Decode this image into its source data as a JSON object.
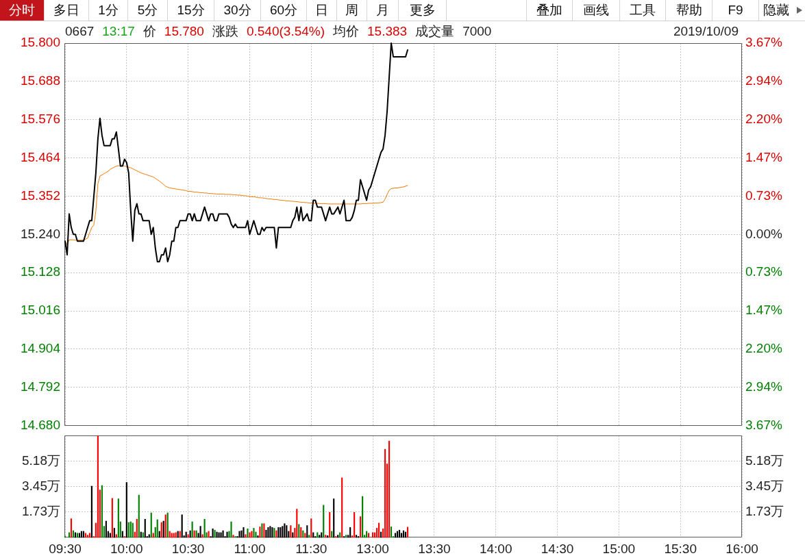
{
  "chart_data": [
    {
      "type": "line",
      "annotations": [
        "分时",
        "多日",
        "1分",
        "5分",
        "15分",
        "30分",
        "60分",
        "日",
        "周",
        "月",
        "更多",
        "叠加",
        "画线",
        "工具",
        "帮助",
        "F9",
        "隐藏",
        "0667",
        "13:17",
        "价",
        "15.780",
        "涨跌",
        "0.540(3.54%)",
        "均价",
        "15.383",
        "成交量",
        "7000",
        "2019/10/09"
      ],
      "categories": [
        null,
        null,
        null,
        null,
        null,
        null,
        null,
        null,
        null,
        null,
        null,
        null,
        null,
        null,
        null,
        null,
        null,
        null,
        null,
        null,
        null,
        null,
        null,
        null,
        null,
        null,
        null,
        null,
        null,
        null,
        null,
        null,
        null,
        null,
        null,
        null,
        null,
        null,
        null,
        null,
        null,
        null,
        null,
        null,
        null,
        null,
        null,
        null,
        null,
        null,
        null,
        null,
        null,
        null,
        null,
        null,
        null,
        null,
        null,
        null,
        null,
        null,
        null,
        null,
        null,
        null,
        null,
        null,
        null,
        null,
        null,
        null,
        null,
        null,
        null,
        null,
        null,
        null,
        null,
        null,
        null,
        null,
        null,
        null,
        null,
        null,
        null,
        null,
        null,
        null,
        null,
        null,
        null,
        null,
        null,
        null,
        null,
        null,
        null,
        null,
        null,
        null,
        null,
        null,
        null,
        null,
        null,
        null,
        null,
        null,
        null,
        null,
        null,
        null,
        null,
        null,
        null,
        null,
        null,
        null,
        null,
        null,
        null,
        null,
        null,
        null,
        null,
        null,
        null,
        null,
        null,
        null,
        null,
        null,
        null,
        null,
        null,
        null,
        null,
        null,
        null,
        null,
        null,
        null,
        null,
        null,
        null,
        null,
        null,
        null,
        null,
        null,
        null,
        null,
        null,
        null,
        null,
        null,
        null,
        null,
        null,
        null,
        null,
        null,
        null,
        null,
        null,
        null,
        null,
        null,
        null,
        null,
        null,
        null,
        null,
        null,
        null,
        null,
        null,
        null,
        null,
        null,
        null,
        null,
        null,
        null,
        null,
        null,
        null,
        null,
        null,
        null,
        null,
        null,
        null,
        null,
        null,
        null,
        null,
        null,
        null,
        null,
        null,
        null,
        null,
        null,
        null,
        null,
        null,
        null,
        null,
        null,
        null,
        null,
        null,
        null,
        null,
        null,
        null,
        null,
        null,
        null,
        null,
        null,
        null,
        null,
        null,
        null,
        null,
        null,
        null,
        null,
        null,
        null,
        null,
        null,
        null,
        null,
        null,
        null,
        null,
        null,
        null,
        null,
        null,
        null,
        null,
        null,
        null,
        null,
        null,
        null,
        null,
        null,
        null,
        null,
        null,
        null,
        null,
        null,
        null,
        null,
        null,
        null,
        null,
        null,
        null,
        null,
        null,
        null,
        null,
        null,
        null,
        null,
        null,
        null,
        null,
        null,
        null,
        null,
        null,
        null,
        null,
        null,
        null,
        null,
        null,
        null,
        null,
        null,
        null,
        null,
        null,
        null,
        null,
        null,
        null,
        null,
        null,
        null,
        null,
        null,
        null,
        null,
        null,
        null,
        null,
        null,
        null,
        null,
        null,
        null,
        null,
        null,
        null,
        null,
        null,
        null,
        null,
        null,
        null,
        null,
        null,
        null,
        null,
        null,
        null,
        null,
        null,
        null,
        null
      ],
      "ylim": [
        14.68,
        15.8
      ],
      "yticks": [
        {
          "value": 15.8,
          "label": "15.800"
        },
        15.688,
        15.576,
        15.464,
        15.352,
        {
          "value": 15.24,
          "label": "15.240"
        },
        15.128,
        15.016,
        14.904,
        14.792,
        {
          "value": 14.68,
          "label": "14.680"
        }
      ],
      "y2lim": [
        -3.67,
        3.67
      ],
      "y2ticks": [
        {
          "value": 3.67,
          "label": "3.67%"
        },
        {
          "value": 2.94,
          "label": "2.94%"
        },
        {
          "value": 2.2,
          "label": "2.20%"
        },
        {
          "value": 1.47,
          "label": "1.47%"
        },
        {
          "value": 0.73,
          "label": "0.73%"
        },
        {
          "value": 0,
          "label": "0.00%"
        },
        {
          "value": -0.73,
          "label": "0.73%"
        },
        {
          "value": -1.47,
          "label": "1.47%"
        },
        {
          "value": -2.2,
          "label": "2.20%"
        },
        {
          "value": -2.94,
          "label": "2.94%"
        },
        {
          "value": -3.67,
          "label": "3.67%"
        }
      ],
      "series": [
        {
          "color": "#000000",
          "values": [
            15.22,
            15.18,
            15.3,
            15.26,
            15.24,
            15.24,
            15.22,
            15.22,
            15.22,
            15.22,
            15.24,
            15.26,
            15.28,
            15.28,
            15.35,
            15.42,
            15.52,
            15.58,
            15.53,
            15.5,
            15.5,
            15.5,
            15.5,
            15.52,
            15.52,
            15.54,
            15.49,
            15.44,
            15.44,
            15.46,
            15.45,
            15.42,
            15.31,
            15.22,
            15.31,
            15.33,
            15.3,
            15.3,
            15.28,
            15.28,
            15.28,
            15.28,
            15.24,
            15.26,
            15.2,
            15.16,
            15.16,
            15.18,
            15.18,
            15.2,
            15.16,
            15.18,
            15.22,
            15.22,
            15.26,
            15.26,
            15.28,
            15.28,
            15.28,
            15.28,
            15.3,
            15.3,
            15.28,
            15.3,
            15.28,
            15.28,
            15.28,
            15.3,
            15.32,
            15.3,
            15.28,
            15.3,
            15.3,
            15.28,
            15.28,
            15.3,
            15.3,
            15.3,
            15.3,
            15.3,
            15.29,
            15.27,
            15.26,
            15.27,
            15.26,
            15.26,
            15.26,
            15.26,
            15.26,
            15.28,
            15.24,
            15.26,
            15.28,
            15.26,
            15.24,
            15.24,
            15.26,
            15.25,
            15.26,
            15.26,
            15.26,
            15.26,
            15.26,
            15.2,
            15.26,
            15.26,
            15.26,
            15.26,
            15.26,
            15.26,
            15.26,
            15.28,
            15.29,
            15.32,
            15.28,
            15.32,
            15.28,
            15.29,
            15.3,
            15.28,
            15.28,
            15.34,
            15.34,
            15.32,
            15.32,
            15.32,
            15.3,
            15.28,
            15.3,
            15.32,
            15.3,
            15.3,
            15.31,
            15.32,
            15.3,
            15.32,
            15.34,
            15.28,
            15.28,
            15.28,
            15.29,
            15.31,
            15.34,
            15.34,
            15.4,
            15.38,
            15.36,
            15.34,
            15.37,
            15.38,
            15.4,
            15.42,
            15.44,
            15.46,
            15.48,
            15.49,
            15.53,
            15.6,
            15.7,
            15.8,
            15.76,
            15.76,
            15.76,
            15.76,
            15.76,
            15.76,
            15.76,
            15.78,
            null,
            null,
            null,
            null,
            null,
            null,
            null,
            null,
            null,
            null,
            null,
            null,
            null,
            null,
            null,
            null,
            null,
            null,
            null,
            null,
            null,
            null,
            null,
            null,
            null,
            null,
            null,
            null,
            null,
            null,
            null,
            null,
            null,
            null,
            null,
            null,
            null,
            null,
            null,
            null,
            null,
            null,
            null,
            null,
            null,
            null,
            null,
            null,
            null,
            null,
            null,
            null,
            null,
            null,
            null,
            null,
            null,
            null,
            null,
            null,
            null,
            null,
            null,
            null,
            null,
            null,
            null,
            null,
            null,
            null,
            null,
            null,
            null,
            null,
            null,
            null,
            null,
            null,
            null,
            null,
            null,
            null,
            null,
            null,
            null,
            null,
            null,
            null,
            null,
            null,
            null,
            null,
            null,
            null,
            null,
            null,
            null,
            null,
            null,
            null,
            null,
            null,
            null,
            null,
            null,
            null,
            null,
            null,
            null,
            null,
            null,
            null,
            null,
            null,
            null,
            null,
            null,
            null,
            null,
            null,
            null,
            null,
            null,
            null,
            null,
            null,
            null,
            null,
            null,
            null,
            null,
            null,
            null,
            null,
            null,
            null,
            null,
            null,
            null,
            null,
            null,
            null,
            null,
            null,
            null,
            null,
            null,
            null,
            null,
            null,
            null,
            null,
            null,
            null,
            null,
            null,
            null,
            null,
            null,
            null,
            null,
            null,
            null
          ]
        },
        {
          "color": "#f07800",
          "values": [
            15.22,
            15.21,
            15.224,
            15.224,
            15.224,
            15.223,
            15.223,
            15.223,
            15.223,
            15.223,
            15.226,
            15.229,
            15.245,
            15.26,
            15.267,
            15.308,
            15.388,
            15.411,
            15.414,
            15.418,
            15.421,
            15.425,
            15.43,
            15.434,
            15.437,
            15.44,
            15.441,
            15.441,
            15.44,
            15.44,
            15.439,
            15.437,
            15.435,
            15.432,
            15.429,
            15.426,
            15.423,
            15.42,
            15.418,
            15.416,
            15.414,
            15.412,
            15.41,
            15.408,
            15.404,
            15.4,
            15.396,
            15.391,
            15.386,
            15.381,
            15.378,
            15.376,
            15.375,
            15.374,
            15.373,
            15.372,
            15.371,
            15.37,
            15.369,
            15.368,
            15.366,
            15.366,
            15.365,
            15.364,
            15.364,
            15.363,
            15.362,
            15.362,
            15.361,
            15.361,
            15.36,
            15.36,
            15.359,
            15.359,
            15.358,
            15.358,
            15.358,
            15.358,
            15.357,
            15.357,
            15.357,
            15.357,
            15.356,
            15.356,
            15.355,
            15.355,
            15.354,
            15.353,
            15.353,
            15.352,
            15.351,
            15.35,
            15.35,
            15.349,
            15.348,
            15.347,
            15.347,
            15.346,
            15.345,
            15.344,
            15.344,
            15.343,
            15.342,
            15.342,
            15.341,
            15.34,
            15.34,
            15.339,
            15.338,
            15.338,
            15.337,
            15.337,
            15.336,
            15.336,
            15.335,
            15.334,
            15.334,
            15.333,
            15.333,
            15.332,
            15.332,
            15.331,
            15.331,
            15.331,
            15.33,
            15.33,
            15.33,
            15.33,
            15.329,
            15.329,
            15.329,
            15.329,
            15.329,
            15.329,
            15.329,
            15.329,
            15.329,
            15.329,
            15.329,
            15.329,
            15.329,
            15.329,
            15.329,
            15.329,
            15.329,
            15.33,
            15.33,
            15.33,
            15.331,
            15.331,
            15.331,
            15.332,
            15.332,
            15.332,
            15.333,
            15.334,
            15.343,
            15.357,
            15.369,
            15.374,
            15.375,
            15.376,
            15.376,
            15.377,
            15.378,
            15.379,
            15.381,
            15.383,
            null,
            null,
            null,
            null,
            null,
            null,
            null,
            null,
            null,
            null,
            null,
            null,
            null,
            null,
            null,
            null,
            null,
            null,
            null,
            null,
            null,
            null,
            null,
            null,
            null,
            null,
            null,
            null,
            null,
            null,
            null,
            null,
            null,
            null,
            null,
            null,
            null,
            null,
            null,
            null,
            null,
            null,
            null,
            null,
            null,
            null,
            null,
            null,
            null,
            null,
            null,
            null,
            null,
            null,
            null,
            null,
            null,
            null,
            null,
            null,
            null,
            null,
            null,
            null,
            null,
            null,
            null,
            null,
            null,
            null,
            null,
            null,
            null,
            null,
            null,
            null,
            null,
            null,
            null,
            null,
            null,
            null,
            null,
            null,
            null,
            null,
            null,
            null,
            null,
            null,
            null,
            null,
            null,
            null,
            null,
            null,
            null,
            null,
            null,
            null,
            null,
            null,
            null,
            null,
            null,
            null,
            null,
            null,
            null,
            null,
            null,
            null,
            null,
            null,
            null,
            null,
            null,
            null,
            null,
            null,
            null,
            null,
            null,
            null,
            null,
            null,
            null,
            null,
            null,
            null,
            null,
            null,
            null,
            null,
            null,
            null,
            null,
            null,
            null,
            null,
            null,
            null,
            null,
            null,
            null,
            null,
            null,
            null,
            null,
            null,
            null,
            null,
            null,
            null,
            null,
            null,
            null,
            null,
            null,
            null,
            null,
            null,
            null
          ]
        }
      ],
      "grid": true,
      "tick_labels": "y"
    },
    {
      "type": "bar",
      "categories": [
        "09:30",
        null,
        null,
        null,
        null,
        null,
        null,
        null,
        null,
        null,
        null,
        null,
        null,
        null,
        null,
        null,
        null,
        null,
        null,
        null,
        null,
        null,
        null,
        null,
        null,
        null,
        null,
        null,
        null,
        null,
        "10:00",
        null,
        null,
        null,
        null,
        null,
        null,
        null,
        null,
        null,
        null,
        null,
        null,
        null,
        null,
        null,
        null,
        null,
        null,
        null,
        null,
        null,
        null,
        null,
        null,
        null,
        null,
        null,
        null,
        null,
        "10:30",
        null,
        null,
        null,
        null,
        null,
        null,
        null,
        null,
        null,
        null,
        null,
        null,
        null,
        null,
        null,
        null,
        null,
        null,
        null,
        null,
        null,
        null,
        null,
        null,
        null,
        null,
        null,
        null,
        null,
        "11:00",
        null,
        null,
        null,
        null,
        null,
        null,
        null,
        null,
        null,
        null,
        null,
        null,
        null,
        null,
        null,
        null,
        null,
        null,
        null,
        null,
        null,
        null,
        null,
        null,
        null,
        null,
        null,
        null,
        null,
        "11:30",
        null,
        null,
        null,
        null,
        null,
        null,
        null,
        null,
        null,
        null,
        null,
        null,
        null,
        null,
        null,
        null,
        null,
        null,
        null,
        null,
        null,
        null,
        null,
        null,
        null,
        null,
        null,
        null,
        null,
        "13:00",
        null,
        null,
        null,
        null,
        null,
        null,
        null,
        null,
        null,
        null,
        null,
        null,
        null,
        null,
        null,
        null,
        null,
        null,
        null,
        null,
        null,
        null,
        null,
        null,
        null,
        null,
        null,
        null,
        null,
        "13:30",
        null,
        null,
        null,
        null,
        null,
        null,
        null,
        null,
        null,
        null,
        null,
        null,
        null,
        null,
        null,
        null,
        null,
        null,
        null,
        null,
        null,
        null,
        null,
        null,
        null,
        null,
        null,
        null,
        null,
        "14:00",
        null,
        null,
        null,
        null,
        null,
        null,
        null,
        null,
        null,
        null,
        null,
        null,
        null,
        null,
        null,
        null,
        null,
        null,
        null,
        null,
        null,
        null,
        null,
        null,
        null,
        null,
        null,
        null,
        null,
        "14:30",
        null,
        null,
        null,
        null,
        null,
        null,
        null,
        null,
        null,
        null,
        null,
        null,
        null,
        null,
        null,
        null,
        null,
        null,
        null,
        null,
        null,
        null,
        null,
        null,
        null,
        null,
        null,
        null,
        null,
        "15:00",
        null,
        null,
        null,
        null,
        null,
        null,
        null,
        null,
        null,
        null,
        null,
        null,
        null,
        null,
        null,
        null,
        null,
        null,
        null,
        null,
        null,
        null,
        null,
        null,
        null,
        null,
        null,
        null,
        null,
        "15:30",
        null,
        null,
        null,
        null,
        null,
        null,
        null,
        null,
        null,
        null,
        null,
        null,
        null,
        null,
        null,
        null,
        null,
        null,
        null,
        null,
        null,
        null,
        null,
        null,
        null,
        null,
        null,
        null,
        null,
        "16:00"
      ],
      "ylim": [
        0,
        6.91
      ],
      "yticks": [
        {
          "value": 1.7275,
          "label": "1.73万"
        },
        {
          "value": 3.455,
          "label": "3.45万"
        },
        {
          "value": 5.1825,
          "label": "5.18万"
        }
      ],
      "y2lim": [
        0,
        6.91
      ],
      "y2ticks": [
        {
          "value": 1.7275,
          "label": "1.73万"
        },
        {
          "value": 3.455,
          "label": "3.45万"
        },
        {
          "value": 5.1825,
          "label": "5.18万"
        }
      ],
      "values": [
        0.09,
        null,
        0.33,
        1.28,
        0.46,
        0.33,
        0.29,
        0.29,
        0.42,
        0.42,
        0.29,
        0.16,
        0.29,
        3.48,
        0.07,
        0.98,
        6.9,
        3.23,
        3.53,
        0.76,
        1.11,
        0.42,
        0.29,
        2.66,
        0.63,
        0.2,
        2.62,
        1.07,
        0.42,
        0.07,
        3.74,
        1.02,
        1.07,
        0.98,
        0.37,
        1.24,
        2.88,
        0.37,
        0.33,
        1.24,
        0.07,
        0.2,
        1.67,
        0.29,
        0.68,
        1.2,
        0.42,
        1.02,
        1.11,
        1.54,
        1.67,
        0.42,
        0.29,
        0.29,
        0.33,
        0.42,
        0.42,
        1.54,
        0.12,
        0.37,
        0.2,
        0.46,
        1.07,
        0.46,
        0.46,
        0.29,
        0.76,
        0.2,
        1.24,
        0.33,
        0.42,
        0.07,
        0.59,
        0.5,
        0.37,
        0.33,
        0.33,
        0.46,
        0.07,
        0.37,
        0.42,
        1.07,
        0.16,
        0.07,
        0.07,
        0.42,
        0.46,
        0.68,
        0.2,
        0.59,
        0.33,
        0.42,
        0.63,
        0.37,
        0.12,
        0.72,
        0.94,
        0.94,
        0.5,
        0.68,
        0.76,
        0.68,
        0.63,
        0.46,
        0.68,
        0.68,
        0.76,
        0.94,
        0.81,
        0.42,
        0.81,
        0.33,
        0.63,
        1.93,
        0.89,
        0.68,
        0.46,
        0.29,
        0.81,
        0.16,
        1.28,
        0.33,
        0.07,
        0.33,
        0.16,
        0.33,
        2.19,
        0.16,
        0.12,
        1.71,
        0.42,
        2.62,
        0.07,
        0.16,
        0.33,
        4.05,
        0.07,
        0.16,
        0.16,
        0.68,
        0.12,
        1.71,
        0.16,
        0.07,
        1.41,
        2.79,
        0.16,
        0.42,
        0.29,
        null,
        0.33,
        0.33,
        0.63,
        0.98,
        0.37,
        0.59,
        5.99,
        5.0,
        6.55,
        0.72,
        0.07,
        0.29,
        0.42,
        0.5,
        0.29,
        0.46,
        0.37,
        0.7,
        null,
        null,
        null,
        null,
        null,
        null,
        null,
        null,
        null,
        null,
        null,
        null,
        null,
        null,
        null,
        null,
        null,
        null,
        null,
        null,
        null,
        null,
        null,
        null,
        null,
        null,
        null,
        null,
        null,
        null,
        null,
        null,
        null,
        null,
        null,
        null,
        null,
        null,
        null,
        null,
        null,
        null,
        null,
        null,
        null,
        null,
        null,
        null,
        null,
        null,
        null,
        null,
        null,
        null,
        null,
        null,
        null,
        null,
        null,
        null,
        null,
        null,
        null,
        null,
        null,
        null,
        null,
        null,
        null,
        null,
        null,
        null,
        null,
        null,
        null,
        null,
        null,
        null,
        null,
        null,
        null,
        null,
        null,
        null,
        null,
        null,
        null,
        null,
        null,
        null,
        null,
        null,
        null,
        null,
        null,
        null,
        null,
        null,
        null,
        null,
        null,
        null,
        null,
        null,
        null,
        null,
        null,
        null,
        null,
        null,
        null,
        null,
        null,
        null,
        null,
        null,
        null,
        null,
        null,
        null,
        null,
        null,
        null,
        null,
        null,
        null,
        null,
        null,
        null,
        null,
        null,
        null,
        null,
        null,
        null,
        null,
        null,
        null,
        null,
        null,
        null,
        null,
        null,
        null,
        null,
        null,
        null,
        null,
        null,
        null,
        null,
        null,
        null,
        null,
        null,
        null,
        null,
        null,
        null,
        null,
        null,
        null,
        null
      ],
      "colors": [
        "#008000",
        "#000000",
        "#008000",
        "#ff0000",
        "#008000",
        "#000000",
        "#008000",
        "#000000",
        "#000000",
        "#000000",
        "#ff0000",
        "#ff0000",
        "#ff0000",
        "#000000",
        "#ff0000",
        "#ff0000",
        "#ff0000",
        "#ff0000",
        "#008000",
        "#008000",
        "#000000",
        "#000000",
        "#000000",
        "#ff0000",
        "#000000",
        "#ff0000",
        "#008000",
        "#008000",
        "#000000",
        "#ff0000",
        "#000000",
        "#008000",
        "#008000",
        "#008000",
        "#ff0000",
        "#ff0000",
        "#008000",
        "#000000",
        "#008000",
        "#000000",
        "#000000",
        "#000000",
        "#008000",
        "#ff0000",
        "#008000",
        "#008000",
        "#000000",
        "#ff0000",
        "#000000",
        "#ff0000",
        "#008000",
        "#ff0000",
        "#ff0000",
        "#ff0000",
        "#ff0000",
        "#000000",
        "#ff0000",
        "#000000",
        "#000000",
        "#000000",
        "#ff0000",
        "#000000",
        "#008000",
        "#ff0000",
        "#008000",
        "#000000",
        "#000000",
        "#ff0000",
        "#008000",
        "#008000",
        "#ff0000",
        "#000000",
        "#000000",
        "#008000",
        "#000000",
        "#000000",
        "#000000",
        "#000000",
        "#000000",
        "#000000",
        "#008000",
        "#008000",
        "#ff0000",
        "#008000",
        "#000000",
        "#000000",
        "#000000",
        "#000000",
        "#ff0000",
        "#008000",
        "#ff0000",
        "#ff0000",
        "#008000",
        "#008000",
        "#000000",
        "#ff0000",
        "#008000",
        "#ff0000",
        "#000000",
        "#000000",
        "#000000",
        "#000000",
        "#008000",
        "#ff0000",
        "#000000",
        "#000000",
        "#000000",
        "#000000",
        "#000000",
        "#000000",
        "#ff0000",
        "#000000",
        "#ff0000",
        "#ff0000",
        "#008000",
        "#ff0000",
        "#008000",
        "#ff0000",
        "#000000",
        "#008000",
        "#ff0000",
        "#000000",
        "#000000",
        "#008000",
        "#000000",
        "#000000",
        "#008000",
        "#ff0000",
        "#000000",
        "#ff0000",
        "#008000",
        "#000000",
        "#ff0000",
        "#000000",
        "#008000",
        "#ff0000",
        "#000000",
        "#008000",
        "#000000",
        "#000000",
        "#ff0000",
        "#ff0000",
        "#000000",
        "#000000",
        "#ff0000",
        "#008000",
        "#008000",
        "#008000",
        "#ff0000",
        "#000000",
        "#ff0000",
        "#ff0000",
        "#ff0000",
        "#ff0000",
        "#000000",
        "#ff0000",
        "#ff0000",
        "#ff0000",
        "#ff0000",
        "#008000",
        "#008000",
        "#000000",
        "#000000",
        "#000000",
        "#000000",
        "#000000",
        "#000000",
        "#ff0000",
        "#000000",
        "#000000",
        "#000000",
        "#000000",
        "#000000",
        "#000000",
        "#000000",
        "#000000",
        "#000000",
        "#000000",
        "#000000",
        "#000000",
        "#000000",
        "#000000",
        "#000000",
        "#000000",
        "#000000",
        "#000000",
        "#000000",
        "#000000",
        "#000000",
        "#000000",
        "#000000",
        "#000000",
        "#000000",
        "#000000",
        "#000000",
        "#000000",
        "#000000",
        "#000000",
        "#000000",
        "#000000",
        "#000000",
        "#000000",
        "#000000",
        "#000000",
        "#000000",
        "#000000",
        "#000000",
        "#000000",
        "#000000",
        "#000000",
        "#000000",
        "#000000",
        "#000000",
        "#000000",
        "#000000",
        "#000000",
        "#000000",
        "#000000",
        "#000000",
        "#000000",
        "#000000",
        "#000000",
        "#000000",
        "#000000",
        "#000000",
        "#000000",
        "#000000",
        "#000000",
        "#000000",
        "#000000",
        "#000000",
        "#000000",
        "#000000",
        "#000000",
        "#000000",
        "#000000",
        "#000000",
        "#000000",
        "#000000",
        "#000000",
        "#000000",
        "#000000",
        "#000000",
        "#000000",
        "#000000",
        "#000000",
        "#000000",
        "#000000",
        "#000000",
        "#000000",
        "#000000",
        "#000000",
        "#000000",
        "#000000",
        "#000000",
        "#000000",
        "#000000",
        "#000000",
        "#000000",
        "#000000",
        "#000000",
        "#000000",
        "#000000",
        "#000000",
        "#000000",
        "#000000",
        "#000000",
        "#000000",
        "#000000",
        "#000000",
        "#000000",
        "#000000",
        "#000000",
        "#000000",
        "#000000",
        "#000000",
        "#000000",
        "#000000",
        "#000000",
        "#000000",
        "#000000",
        "#000000",
        "#000000",
        "#000000",
        "#000000",
        "#000000",
        "#000000",
        "#000000",
        "#000000",
        "#000000",
        "#000000",
        "#000000",
        "#000000",
        "#000000",
        "#000000",
        "#000000",
        "#000000",
        "#000000",
        "#000000",
        "#000000",
        "#000000",
        "#000000",
        "#000000",
        "#000000",
        "#000000",
        "#000000",
        "#000000",
        "#000000",
        "#000000",
        "#000000",
        "#000000",
        "#000000",
        "#000000",
        "#000000",
        "#000000",
        "#000000",
        "#000000",
        "#000000",
        "#000000",
        "#000000",
        "#000000",
        "#000000",
        "#000000",
        "#000000",
        "#000000",
        "#000000",
        "#000000",
        "#000000",
        "#000000",
        "#000000",
        "#000000"
      ],
      "grid": true
    }
  ]
}
